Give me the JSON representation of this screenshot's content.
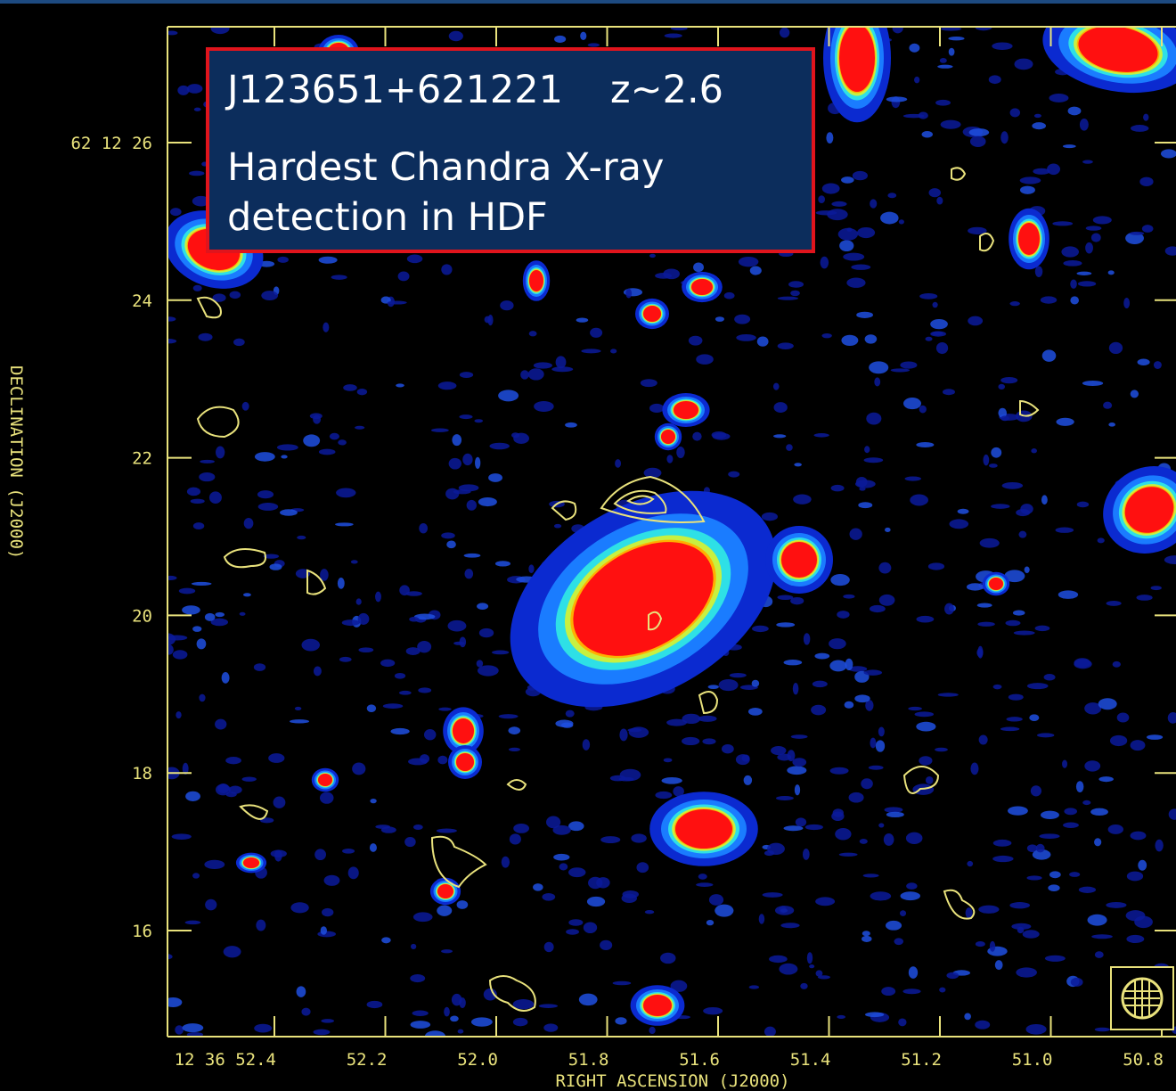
{
  "title_box": {
    "name": "J123651+621221",
    "redshift": "z~2.6",
    "caption_lines": [
      "Hardest Chandra X-ray",
      "detection in HDF"
    ]
  },
  "x_axis": {
    "label": "RIGHT ASCENSION (J2000)",
    "ticks": [
      "12 36 52.4",
      "52.2",
      "52.0",
      "51.8",
      "51.6",
      "51.4",
      "51.2",
      "51.0",
      "50.8"
    ]
  },
  "y_axis": {
    "label": "DECLINATION (J2000)",
    "ticks": [
      "62 12 26",
      "24",
      "22",
      "20",
      "18",
      "16"
    ]
  }
}
